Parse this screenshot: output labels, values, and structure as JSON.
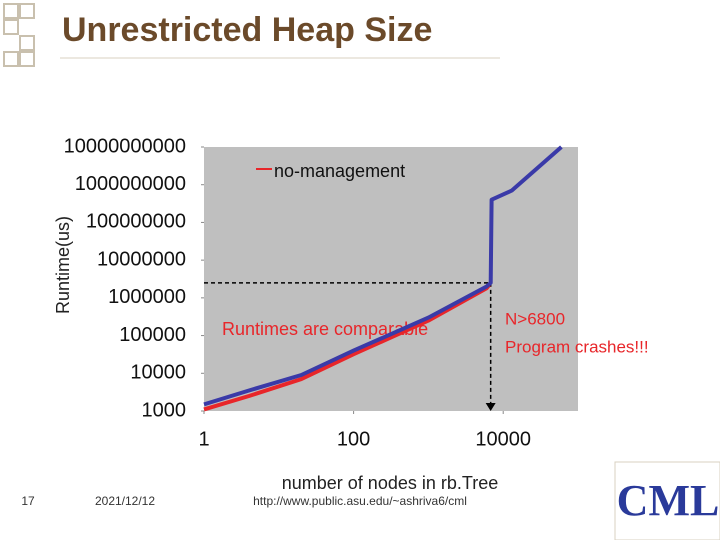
{
  "slide": {
    "title": "Unrestricted Heap Size",
    "page_number": "17",
    "date": "2021/12/12",
    "url": "http://www.public.asu.edu/~ashriva6/cml",
    "logo": "CML"
  },
  "chart_data": {
    "type": "line",
    "log_scale": true,
    "grid": false,
    "ylabel": "Runtime(us)",
    "xlabel": "number of nodes in rb.Tree",
    "xlim": [
      1,
      100000
    ],
    "xticks": [
      1,
      100,
      10000
    ],
    "ylim": [
      1000,
      10000000000
    ],
    "yticks": [
      1000,
      10000,
      100000,
      1000000,
      10000000,
      100000000,
      1000000000,
      10000000000
    ],
    "legend_position": "top",
    "series": [
      {
        "name": "no-management",
        "color": "#e8262a",
        "x": [
          1,
          4,
          20,
          100,
          1000,
          6000,
          6500
        ],
        "values": [
          1100,
          2500,
          7000,
          32000,
          250000,
          1800000,
          2200000
        ]
      },
      {
        "color": "#3a3aa8",
        "x": [
          1,
          4,
          20,
          100,
          1000,
          6000,
          6800,
          7000,
          13000,
          60000
        ],
        "values": [
          1500,
          3500,
          9000,
          40000,
          300000,
          2000000,
          2500000,
          400000000,
          700000000,
          10000000000
        ]
      }
    ],
    "annotations": {
      "comparable": "Runtimes are comparable",
      "crash_1": "N>6800",
      "crash_2": "Program crashes!!!",
      "threshold_x": 6800,
      "threshold_y": 2500000
    }
  }
}
